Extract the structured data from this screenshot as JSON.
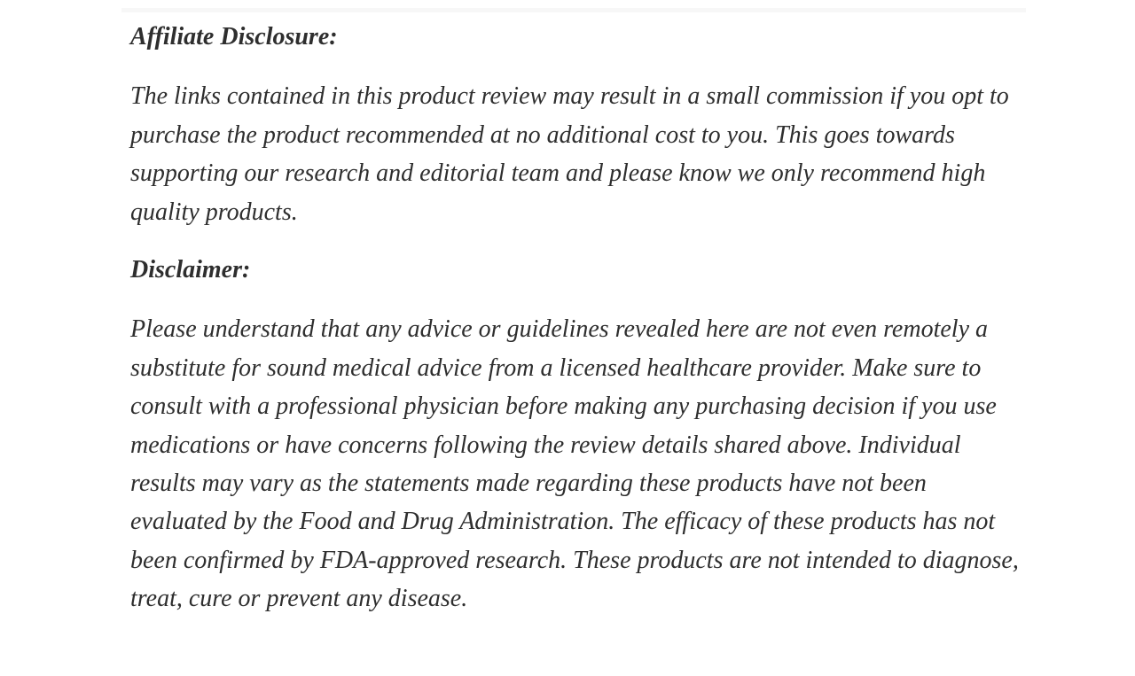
{
  "page": {
    "background_color": "#ffffff",
    "text_color": "#2e2e2e",
    "top_divider_color": "#f7f7f7"
  },
  "article": {
    "affiliate_heading": "Affiliate Disclosure:",
    "affiliate_paragraph": "The links contained in this product review may result in a small commission if you opt to purchase the product recommended at no additional cost to you. This goes towards supporting our research and editorial team and please know we only recommend high quality products.",
    "disclaimer_heading": "Disclaimer:",
    "disclaimer_paragraph": "Please understand that any advice or guidelines revealed here are not even remotely a substitute for sound medical advice from a licensed healthcare provider. Make sure to consult with a professional physician before making any purchasing decision if you use medications or have concerns following the review details shared above. Individual results may vary as the statements made regarding these products have not been evaluated by the Food and Drug Administration. The efficacy of these products has not been confirmed by FDA-approved research. These products are not intended to diagnose, treat, cure or prevent any disease."
  }
}
